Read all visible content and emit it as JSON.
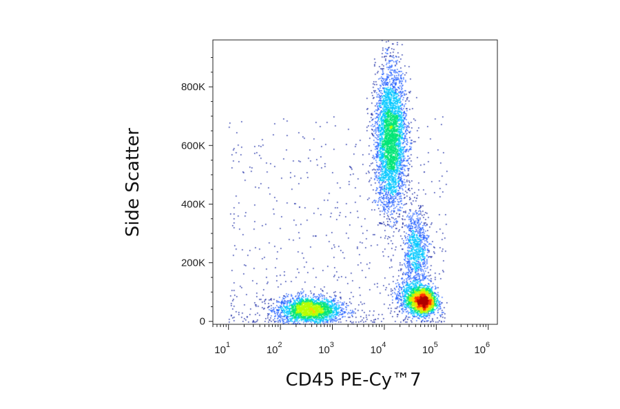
{
  "chart_data": {
    "type": "scatter",
    "subtype": "flow-cytometry density dot plot",
    "xlabel": "CD45 PE-Cy™7",
    "ylabel": "Side Scatter",
    "x_scale": "log",
    "xlim": [
      5,
      1500000
    ],
    "ylim": [
      -10000,
      960000
    ],
    "x_ticks": [
      {
        "value": 10,
        "base": "10",
        "exp": "1"
      },
      {
        "value": 100,
        "base": "10",
        "exp": "2"
      },
      {
        "value": 1000,
        "base": "10",
        "exp": "3"
      },
      {
        "value": 10000,
        "base": "10",
        "exp": "4"
      },
      {
        "value": 100000,
        "base": "10",
        "exp": "5"
      },
      {
        "value": 1000000,
        "base": "10",
        "exp": "6"
      }
    ],
    "y_ticks": [
      {
        "value": 0,
        "label": "0"
      },
      {
        "value": 200000,
        "label": "200K"
      },
      {
        "value": 400000,
        "label": "400K"
      },
      {
        "value": 600000,
        "label": "600K"
      },
      {
        "value": 800000,
        "label": "800K"
      }
    ],
    "populations": [
      {
        "center_x": 350,
        "center_y": 40000,
        "x_spread_decades": 0.3,
        "y_spread": 22000,
        "count": 2300,
        "peak_density": "green"
      },
      {
        "center_x": 13000,
        "center_y": 620000,
        "x_spread_decades": 0.15,
        "y_spread": 120000,
        "count": 3800,
        "peak_density": "green"
      },
      {
        "center_x": 55000,
        "center_y": 70000,
        "x_spread_decades": 0.12,
        "y_spread": 22000,
        "count": 2400,
        "peak_density": "red"
      },
      {
        "center_x": 40000,
        "center_y": 240000,
        "x_spread_decades": 0.12,
        "y_spread": 70000,
        "count": 900,
        "peak_density": "cyan"
      },
      {
        "center_x": 30000,
        "center_y": 90000,
        "x_spread_decades": 0.15,
        "y_spread": 30000,
        "count": 500,
        "peak_density": "blue"
      }
    ],
    "background_events": 700,
    "density_colors": [
      "#0a1a9e",
      "#1f5cff",
      "#00c8ff",
      "#00e676",
      "#b6ff00",
      "#ffd000",
      "#ff3000",
      "#b00000"
    ],
    "grid": false,
    "legend": "none"
  }
}
